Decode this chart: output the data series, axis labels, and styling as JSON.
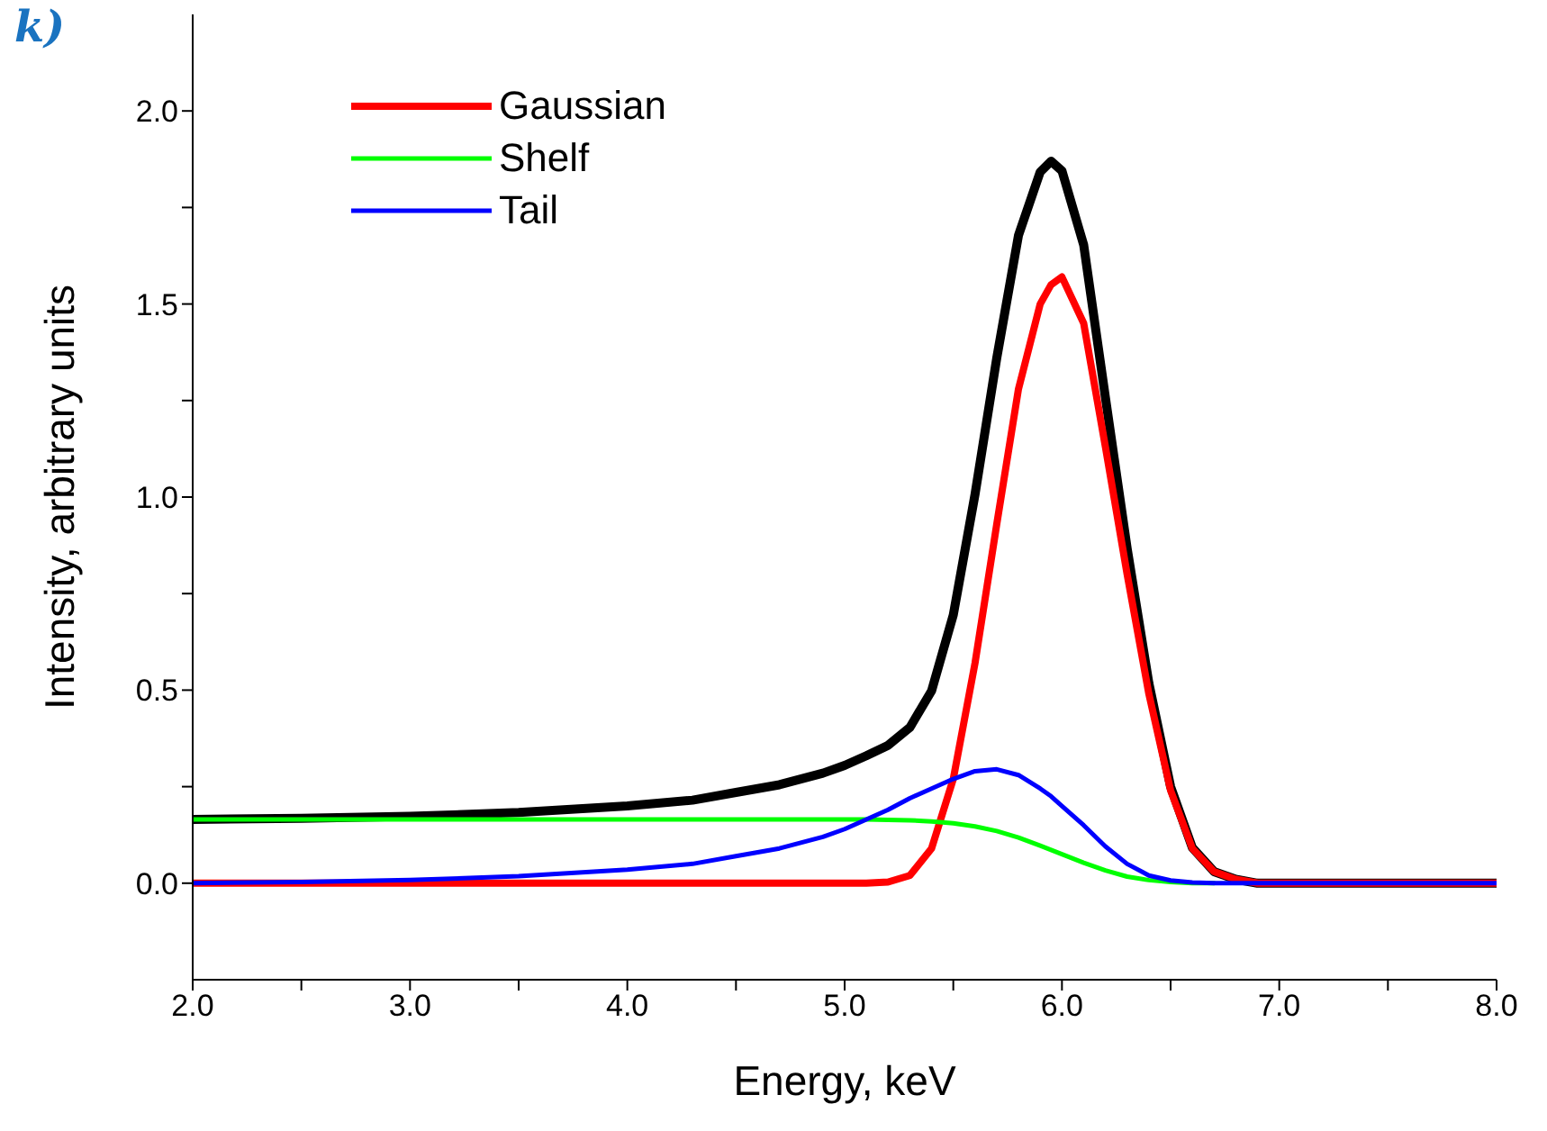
{
  "chart_data": {
    "type": "line",
    "xlabel": "Energy, keV",
    "ylabel": "Intensity, arbitrary units",
    "annotations": [
      "k)"
    ],
    "x": [
      2,
      2.5,
      3,
      3.5,
      4,
      4.3,
      4.5,
      4.7,
      4.9,
      5.0,
      5.1,
      5.2,
      5.3,
      5.4,
      5.5,
      5.6,
      5.7,
      5.8,
      5.9,
      5.95,
      6.0,
      6.1,
      6.2,
      6.3,
      6.4,
      6.5,
      6.6,
      6.7,
      6.8,
      6.9,
      7,
      8
    ],
    "series": [
      {
        "color": "#000000",
        "values": [
          0.165,
          0.168,
          0.173,
          0.183,
          0.2,
          0.215,
          0.235,
          0.255,
          0.285,
          0.305,
          0.33,
          0.357,
          0.403,
          0.498,
          0.695,
          1.007,
          1.36,
          1.678,
          1.842,
          1.87,
          1.845,
          1.653,
          1.258,
          0.867,
          0.518,
          0.25,
          0.092,
          0.03,
          0.01,
          0,
          0,
          0
        ]
      },
      {
        "name": "Gaussian",
        "color": "#ff0000",
        "values": [
          0,
          0,
          0,
          0,
          0,
          0,
          0,
          0,
          0,
          0,
          0,
          0.003,
          0.02,
          0.09,
          0.27,
          0.57,
          0.93,
          1.28,
          1.5,
          1.55,
          1.57,
          1.45,
          1.13,
          0.8,
          0.49,
          0.24,
          0.09,
          0.03,
          0.01,
          0,
          0,
          0
        ]
      },
      {
        "name": "Shelf",
        "color": "#00ff00",
        "values": [
          0.165,
          0.165,
          0.165,
          0.165,
          0.165,
          0.165,
          0.165,
          0.165,
          0.165,
          0.165,
          0.165,
          0.164,
          0.163,
          0.16,
          0.155,
          0.147,
          0.135,
          0.118,
          0.097,
          0.086,
          0.075,
          0.053,
          0.033,
          0.017,
          0.008,
          0.003,
          0,
          0,
          null,
          null,
          null,
          null
        ]
      },
      {
        "name": "Tail",
        "color": "#0000ff",
        "values": [
          0,
          0.003,
          0.008,
          0.018,
          0.035,
          0.05,
          0.07,
          0.09,
          0.12,
          0.14,
          0.165,
          0.19,
          0.22,
          0.245,
          0.27,
          0.29,
          0.295,
          0.28,
          0.245,
          0.225,
          0.2,
          0.15,
          0.095,
          0.05,
          0.02,
          0.007,
          0.002,
          0,
          0,
          0,
          0,
          0
        ]
      }
    ],
    "xlim": [
      2,
      8
    ],
    "xticks": [
      {
        "value": 2,
        "label": "2.0"
      },
      {
        "value": 2.5,
        "label": null
      },
      {
        "value": 3,
        "label": "3.0"
      },
      {
        "value": 3.5,
        "label": null
      },
      {
        "value": 4,
        "label": "4.0"
      },
      {
        "value": 4.5,
        "label": null
      },
      {
        "value": 5,
        "label": "5.0"
      },
      {
        "value": 5.5,
        "label": null
      },
      {
        "value": 6,
        "label": "6.0"
      },
      {
        "value": 6.5,
        "label": null
      },
      {
        "value": 7,
        "label": "7.0"
      },
      {
        "value": 7.5,
        "label": null
      },
      {
        "value": 8,
        "label": "8.0"
      }
    ],
    "ylim": [
      -0.25,
      2.25
    ],
    "yticks": [
      {
        "value": 0,
        "label": "0.0"
      },
      {
        "value": 0.25,
        "label": null
      },
      {
        "value": 0.5,
        "label": "0.5"
      },
      {
        "value": 0.75,
        "label": null
      },
      {
        "value": 1,
        "label": "1.0"
      },
      {
        "value": 1.25,
        "label": null
      },
      {
        "value": 1.5,
        "label": "1.5"
      },
      {
        "value": 1.75,
        "label": null
      },
      {
        "value": 2,
        "label": "2.0"
      }
    ],
    "grid": false,
    "legend": "top left",
    "marker": "none",
    "line_style": "solid"
  }
}
